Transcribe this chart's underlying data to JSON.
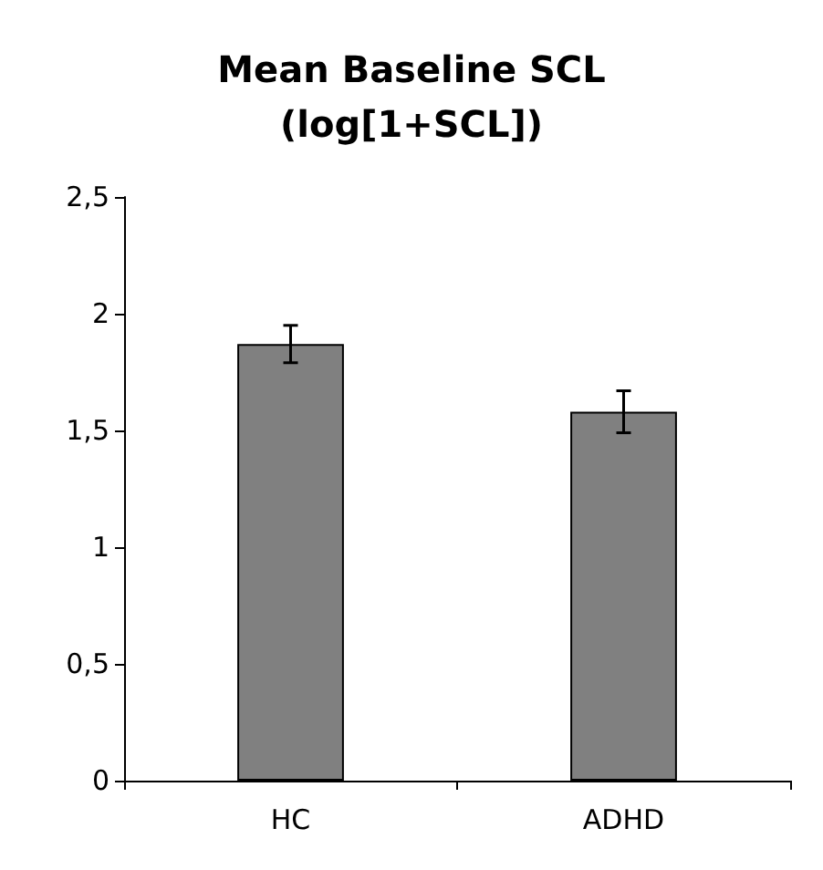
{
  "chart_data": {
    "type": "bar",
    "title": "Mean Baseline SCL\n(log[1+SCL])",
    "categories": [
      "HC",
      "ADHD"
    ],
    "values": [
      1.87,
      1.58
    ],
    "errors": [
      0.08,
      0.09
    ],
    "color": "#808080",
    "ylim": [
      0,
      2.5
    ],
    "yticks": [
      {
        "value": 0,
        "label": "0"
      },
      {
        "value": 0.5,
        "label": "0,5"
      },
      {
        "value": 1,
        "label": "1"
      },
      {
        "value": 1.5,
        "label": "1,5"
      },
      {
        "value": 2,
        "label": "2"
      },
      {
        "value": 2.5,
        "label": "2,5"
      }
    ],
    "grid": false
  }
}
